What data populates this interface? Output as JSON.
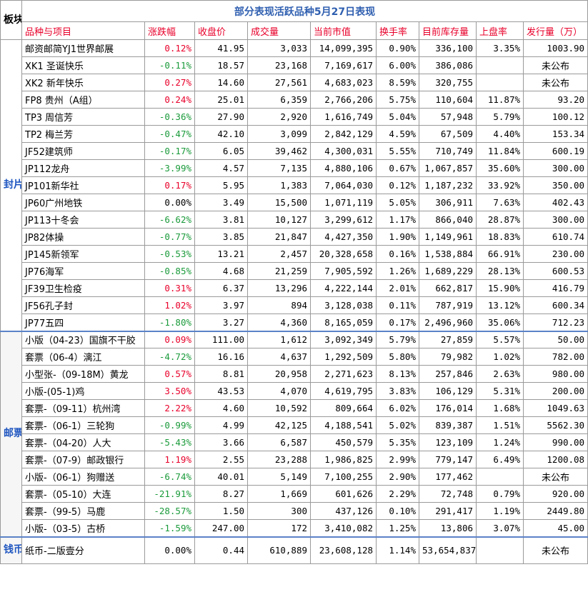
{
  "title": "部分表现活跃品种5月27日表现",
  "sector_header": "板块",
  "headers": [
    "品种与项目",
    "涨跌幅",
    "收盘价",
    "成交量",
    "当前市值",
    "换手率",
    "目前库存量",
    "上盘率",
    "发行量（万）"
  ],
  "sectors": {
    "covers": "封片",
    "stamps": "邮票",
    "coins": "钱币"
  },
  "colors": {
    "up": "#e8002a",
    "down": "#1a9a3a",
    "title": "#2f5fb0",
    "sector": "#1f56c0"
  },
  "rows": [
    {
      "name": "邮资邮简YJ1世界邮展",
      "change": "0.12%",
      "dir": "up",
      "close": "41.95",
      "volume": "3,033",
      "cap": "14,099,395",
      "turnover": "0.90%",
      "stock": "336,100",
      "upr": "3.35%",
      "issue": "1003.90",
      "issue_center": false
    },
    {
      "name": "XK1 圣诞快乐",
      "change": "-0.11%",
      "dir": "down",
      "close": "18.57",
      "volume": "23,168",
      "cap": "7,169,617",
      "turnover": "6.00%",
      "stock": "386,086",
      "upr": "",
      "issue": "未公布",
      "issue_center": true
    },
    {
      "name": "XK2 新年快乐",
      "change": "0.27%",
      "dir": "up",
      "close": "14.60",
      "volume": "27,561",
      "cap": "4,683,023",
      "turnover": "8.59%",
      "stock": "320,755",
      "upr": "",
      "issue": "未公布",
      "issue_center": true
    },
    {
      "name": "FP8 贵州（A组）",
      "change": "0.24%",
      "dir": "up",
      "close": "25.01",
      "volume": "6,359",
      "cap": "2,766,206",
      "turnover": "5.75%",
      "stock": "110,604",
      "upr": "11.87%",
      "issue": "93.20",
      "issue_center": false
    },
    {
      "name": "TP3 周信芳",
      "change": "-0.36%",
      "dir": "down",
      "close": "27.90",
      "volume": "2,920",
      "cap": "1,616,749",
      "turnover": "5.04%",
      "stock": "57,948",
      "upr": "5.79%",
      "issue": "100.12",
      "issue_center": false
    },
    {
      "name": "TP2 梅兰芳",
      "change": "-0.47%",
      "dir": "down",
      "close": "42.10",
      "volume": "3,099",
      "cap": "2,842,129",
      "turnover": "4.59%",
      "stock": "67,509",
      "upr": "4.40%",
      "issue": "153.34",
      "issue_center": false
    },
    {
      "name": "JF52建筑师",
      "change": "-0.17%",
      "dir": "down",
      "close": "6.05",
      "volume": "39,462",
      "cap": "4,300,031",
      "turnover": "5.55%",
      "stock": "710,749",
      "upr": "11.84%",
      "issue": "600.19",
      "issue_center": false
    },
    {
      "name": "JP112龙舟",
      "change": "-3.99%",
      "dir": "down",
      "close": "4.57",
      "volume": "7,135",
      "cap": "4,880,106",
      "turnover": "0.67%",
      "stock": "1,067,857",
      "upr": "35.60%",
      "issue": "300.00",
      "issue_center": false
    },
    {
      "name": "JP101新华社",
      "change": "0.17%",
      "dir": "up",
      "close": "5.95",
      "volume": "1,383",
      "cap": "7,064,030",
      "turnover": "0.12%",
      "stock": "1,187,232",
      "upr": "33.92%",
      "issue": "350.00",
      "issue_center": false
    },
    {
      "name": "JP60广州地铁",
      "change": "0.00%",
      "dir": "flat",
      "close": "3.49",
      "volume": "15,500",
      "cap": "1,071,119",
      "turnover": "5.05%",
      "stock": "306,911",
      "upr": "7.63%",
      "issue": "402.43",
      "issue_center": false
    },
    {
      "name": "JP113十冬会",
      "change": "-6.62%",
      "dir": "down",
      "close": "3.81",
      "volume": "10,127",
      "cap": "3,299,612",
      "turnover": "1.17%",
      "stock": "866,040",
      "upr": "28.87%",
      "issue": "300.00",
      "issue_center": false
    },
    {
      "name": "JP82体操",
      "change": "-0.77%",
      "dir": "down",
      "close": "3.85",
      "volume": "21,847",
      "cap": "4,427,350",
      "turnover": "1.90%",
      "stock": "1,149,961",
      "upr": "18.83%",
      "issue": "610.74",
      "issue_center": false
    },
    {
      "name": "JP145新领军",
      "change": "-0.53%",
      "dir": "down",
      "close": "13.21",
      "volume": "2,457",
      "cap": "20,328,658",
      "turnover": "0.16%",
      "stock": "1,538,884",
      "upr": "66.91%",
      "issue": "230.00",
      "issue_center": false
    },
    {
      "name": "JP76海军",
      "change": "-0.85%",
      "dir": "down",
      "close": "4.68",
      "volume": "21,259",
      "cap": "7,905,592",
      "turnover": "1.26%",
      "stock": "1,689,229",
      "upr": "28.13%",
      "issue": "600.53",
      "issue_center": false
    },
    {
      "name": "JF39卫生检疫",
      "change": "0.31%",
      "dir": "up",
      "close": "6.37",
      "volume": "13,296",
      "cap": "4,222,144",
      "turnover": "2.01%",
      "stock": "662,817",
      "upr": "15.90%",
      "issue": "416.79",
      "issue_center": false
    },
    {
      "name": "JF56孔子封",
      "change": "1.02%",
      "dir": "up",
      "close": "3.97",
      "volume": "894",
      "cap": "3,128,038",
      "turnover": "0.11%",
      "stock": "787,919",
      "upr": "13.12%",
      "issue": "600.34",
      "issue_center": false
    },
    {
      "name": "JP77五四",
      "change": "-1.80%",
      "dir": "down",
      "close": "3.27",
      "volume": "4,360",
      "cap": "8,165,059",
      "turnover": "0.17%",
      "stock": "2,496,960",
      "upr": "35.06%",
      "issue": "712.23",
      "issue_center": false
    },
    {
      "name": "小版（04-23）国旗不干胶",
      "change": "0.09%",
      "dir": "up",
      "close": "111.00",
      "volume": "1,612",
      "cap": "3,092,349",
      "turnover": "5.79%",
      "stock": "27,859",
      "upr": "5.57%",
      "issue": "50.00",
      "issue_center": false
    },
    {
      "name": "套票（06-4）漓江",
      "change": "-4.72%",
      "dir": "down",
      "close": "16.16",
      "volume": "4,637",
      "cap": "1,292,509",
      "turnover": "5.80%",
      "stock": "79,982",
      "upr": "1.02%",
      "issue": "782.00",
      "issue_center": false
    },
    {
      "name": "小型张-（09-18M）黄龙",
      "change": "0.57%",
      "dir": "up",
      "close": "8.81",
      "volume": "20,958",
      "cap": "2,271,623",
      "turnover": "8.13%",
      "stock": "257,846",
      "upr": "2.63%",
      "issue": "980.00",
      "issue_center": false
    },
    {
      "name": "小版-(05-1)鸡",
      "change": "3.50%",
      "dir": "up",
      "close": "43.53",
      "volume": "4,070",
      "cap": "4,619,795",
      "turnover": "3.83%",
      "stock": "106,129",
      "upr": "5.31%",
      "issue": "200.00",
      "issue_center": false
    },
    {
      "name": "套票-（09-11）杭州湾",
      "change": "2.22%",
      "dir": "up",
      "close": "4.60",
      "volume": "10,592",
      "cap": "809,664",
      "turnover": "6.02%",
      "stock": "176,014",
      "upr": "1.68%",
      "issue": "1049.63",
      "issue_center": false
    },
    {
      "name": "套票-（06-1）三轮狗",
      "change": "-0.99%",
      "dir": "down",
      "close": "4.99",
      "volume": "42,125",
      "cap": "4,188,541",
      "turnover": "5.02%",
      "stock": "839,387",
      "upr": "1.51%",
      "issue": "5562.30",
      "issue_center": false
    },
    {
      "name": "套票-（04-20）人大",
      "change": "-5.43%",
      "dir": "down",
      "close": "3.66",
      "volume": "6,587",
      "cap": "450,579",
      "turnover": "5.35%",
      "stock": "123,109",
      "upr": "1.24%",
      "issue": "990.00",
      "issue_center": false
    },
    {
      "name": "套票-（07-9）邮政银行",
      "change": "1.19%",
      "dir": "up",
      "close": "2.55",
      "volume": "23,288",
      "cap": "1,986,825",
      "turnover": "2.99%",
      "stock": "779,147",
      "upr": "6.49%",
      "issue": "1200.08",
      "issue_center": false
    },
    {
      "name": "小版-（06-1）狗赠送",
      "change": "-6.74%",
      "dir": "down",
      "close": "40.01",
      "volume": "5,149",
      "cap": "7,100,255",
      "turnover": "2.90%",
      "stock": "177,462",
      "upr": "",
      "issue": "未公布",
      "issue_center": true
    },
    {
      "name": "套票-（05-10）大连",
      "change": "-21.91%",
      "dir": "down",
      "close": "8.27",
      "volume": "1,669",
      "cap": "601,626",
      "turnover": "2.29%",
      "stock": "72,748",
      "upr": "0.79%",
      "issue": "920.00",
      "issue_center": false
    },
    {
      "name": "套票-（99-5）马鹿",
      "change": "-28.57%",
      "dir": "down",
      "close": "1.50",
      "volume": "300",
      "cap": "437,126",
      "turnover": "0.10%",
      "stock": "291,417",
      "upr": "1.19%",
      "issue": "2449.80",
      "issue_center": false
    },
    {
      "name": "小版-（03-5）古桥",
      "change": "-1.59%",
      "dir": "down",
      "close": "247.00",
      "volume": "172",
      "cap": "3,410,082",
      "turnover": "1.25%",
      "stock": "13,806",
      "upr": "3.07%",
      "issue": "45.00",
      "issue_center": false
    },
    {
      "name": "纸币-二版壹分",
      "change": "0.00%",
      "dir": "flat",
      "close": "0.44",
      "volume": "610,889",
      "cap": "23,608,128",
      "turnover": "1.14%",
      "stock": "53,654,837",
      "upr": "",
      "issue": "未公布",
      "issue_center": true
    }
  ]
}
